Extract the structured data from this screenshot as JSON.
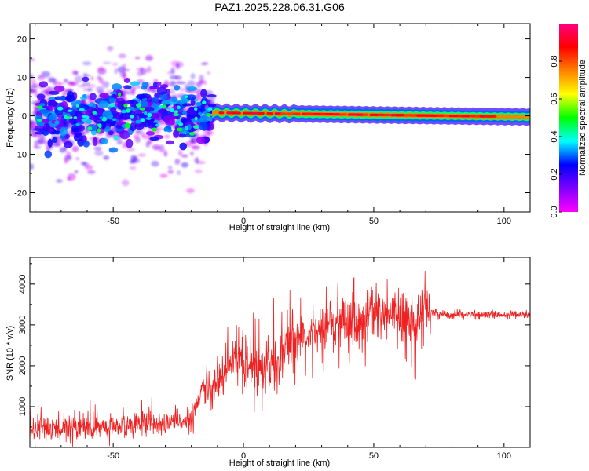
{
  "title": "PAZ1.2025.228.06.31.G06",
  "chart_data": [
    {
      "type": "heatmap",
      "xlabel": "Height of straight line (km)",
      "ylabel": "Frequency (Hz)",
      "xlim": [
        -82,
        110
      ],
      "ylim": [
        -25,
        24
      ],
      "xticks": [
        -50,
        0,
        50,
        100
      ],
      "yticks": [
        -20,
        -10,
        0,
        10,
        20
      ],
      "grid": false,
      "colorbar": {
        "label": "Normalized spectral amplitude",
        "range": [
          0.0,
          1.0
        ],
        "ticks": [
          0.0,
          0.2,
          0.4,
          0.6,
          0.8
        ],
        "colormap": [
          "#ff00ff",
          "#8000ff",
          "#0000ff",
          "#00ffff",
          "#00ff00",
          "#ffff00",
          "#ff8000",
          "#ff0000",
          "#ff0080"
        ]
      },
      "scatter_noise": {
        "x_range": [
          -82,
          -12
        ],
        "freq_center": 0,
        "freq_spread": 12
      },
      "ridge": {
        "x_range": [
          -12,
          110
        ],
        "freq_center": 0.8,
        "trend_to": -0.3
      }
    },
    {
      "type": "line",
      "xlabel": "Height of straight line (km)",
      "ylabel": "SNR (10 * v/v)",
      "xlim": [
        -82,
        110
      ],
      "ylim": [
        0,
        4650
      ],
      "xticks": [
        -50,
        0,
        50,
        100
      ],
      "yticks": [
        1000,
        2000,
        3000,
        4000
      ],
      "grid": false,
      "line_color": "#ee2222",
      "series": [
        {
          "x": [
            -82,
            -70,
            -60,
            -50,
            -40,
            -30,
            -25,
            -20,
            -17,
            -15,
            -12,
            -10,
            -5,
            0,
            5,
            10,
            15,
            20,
            25,
            30,
            35,
            40,
            45,
            50,
            55,
            60,
            65,
            70,
            75,
            80,
            85,
            90,
            100,
            110
          ],
          "values": [
            400,
            450,
            500,
            520,
            560,
            560,
            600,
            700,
            1200,
            1500,
            1450,
            1650,
            2100,
            2250,
            2050,
            2000,
            2300,
            2650,
            2850,
            2900,
            3050,
            3100,
            3100,
            3300,
            3200,
            3100,
            3100,
            3400,
            3250,
            3250,
            3250,
            3250,
            3250,
            3250
          ]
        }
      ]
    }
  ]
}
